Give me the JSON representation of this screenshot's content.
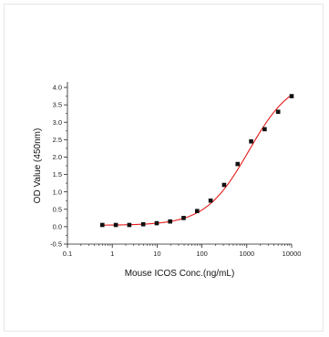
{
  "chart_data": {
    "type": "scatter",
    "title": "",
    "xlabel": "Mouse ICOS Conc.(ng/mL)",
    "ylabel": "OD Value (450nm)",
    "x_scale": "log",
    "xlim": [
      0.1,
      10000
    ],
    "ylim": [
      -0.5,
      4.0
    ],
    "x_ticks": [
      0.1,
      1,
      10,
      100,
      1000,
      10000
    ],
    "x_tick_labels": [
      "0.1",
      "1",
      "10",
      "100",
      "1000",
      "10000"
    ],
    "y_ticks": [
      -0.5,
      0.0,
      0.5,
      1.0,
      1.5,
      2.0,
      2.5,
      3.0,
      3.5,
      4.0
    ],
    "y_tick_labels": [
      "-0.5",
      "0.0",
      "0.5",
      "1.0",
      "1.5",
      "2.0",
      "2.5",
      "3.0",
      "3.5",
      "4.0"
    ],
    "grid": false,
    "series": [
      {
        "points": [
          [
            0.6,
            0.05
          ],
          [
            1.2,
            0.05
          ],
          [
            2.4,
            0.05
          ],
          [
            4.9,
            0.07
          ],
          [
            9.8,
            0.1
          ],
          [
            19.5,
            0.15
          ],
          [
            39,
            0.25
          ],
          [
            78,
            0.45
          ],
          [
            156,
            0.75
          ],
          [
            312,
            1.2
          ],
          [
            625,
            1.8
          ],
          [
            1250,
            2.45
          ],
          [
            2500,
            2.8
          ],
          [
            5000,
            3.3
          ],
          [
            10000,
            3.75
          ]
        ],
        "marker": "square",
        "color": "#111111"
      }
    ],
    "fit_curve": {
      "model": "4PL",
      "color": "#e31b1b",
      "params": {
        "bottom": 0.04,
        "top": 4.3,
        "ec50": 1100,
        "hill": 0.9
      },
      "x_range": [
        0.6,
        10000
      ]
    }
  }
}
